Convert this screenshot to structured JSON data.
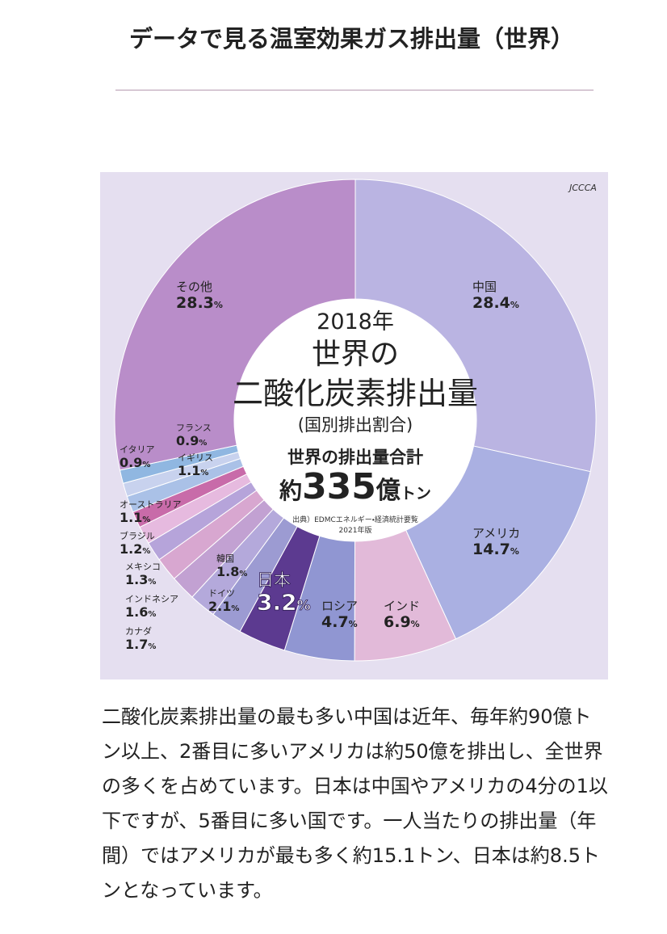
{
  "header": {
    "title": "データで見る温室効果ガス排出量（世界）"
  },
  "chart_data": {
    "type": "donut",
    "logo": "JCCCA",
    "year": "2018年",
    "title_lines": [
      "世界の",
      "二酸化炭素排出量"
    ],
    "subtitle": "(国別排出割合)",
    "total_label": "世界の排出量合計",
    "total_prefix": "約",
    "total": 335,
    "total_unit_1": "億",
    "total_unit_2": "トン",
    "source": "出典）EDMCエネルギー・経済統計要覧",
    "source_edition": "2021年版",
    "unit": "%",
    "categories": [
      "中国",
      "アメリカ",
      "インド",
      "ロシア",
      "日本",
      "ドイツ",
      "韓国",
      "カナダ",
      "インドネシア",
      "メキシコ",
      "ブラジル",
      "オーストラリア",
      "イギリス",
      "フランス",
      "イタリア",
      "その他"
    ],
    "values": [
      28.4,
      14.7,
      6.9,
      4.7,
      3.2,
      2.1,
      1.8,
      1.7,
      1.6,
      1.3,
      1.2,
      1.1,
      1.1,
      0.9,
      0.9,
      28.3
    ],
    "colors": [
      "#bab4e2",
      "#aab0e2",
      "#e2bad9",
      "#9096d2",
      "#5c3a90",
      "#9c9bd2",
      "#b4a9db",
      "#c2a1d2",
      "#d8a7d0",
      "#b6a4da",
      "#e6badf",
      "#c86ba9",
      "#aac1e7",
      "#c8d2ee",
      "#90b7e1",
      "#b98dc9"
    ]
  },
  "paragraph": "二酸化炭素排出量の最も多い中国は近年、毎年約90億トン以上、2番目に多いアメリカは約50億を排出し、全世界の多くを占めています。日本は中国やアメリカの4分の1以下ですが、5番目に多い国です。一人当たりの排出量（年間）ではアメリカが最も多く約15.1トン、日本は約8.5トンとなっています。"
}
